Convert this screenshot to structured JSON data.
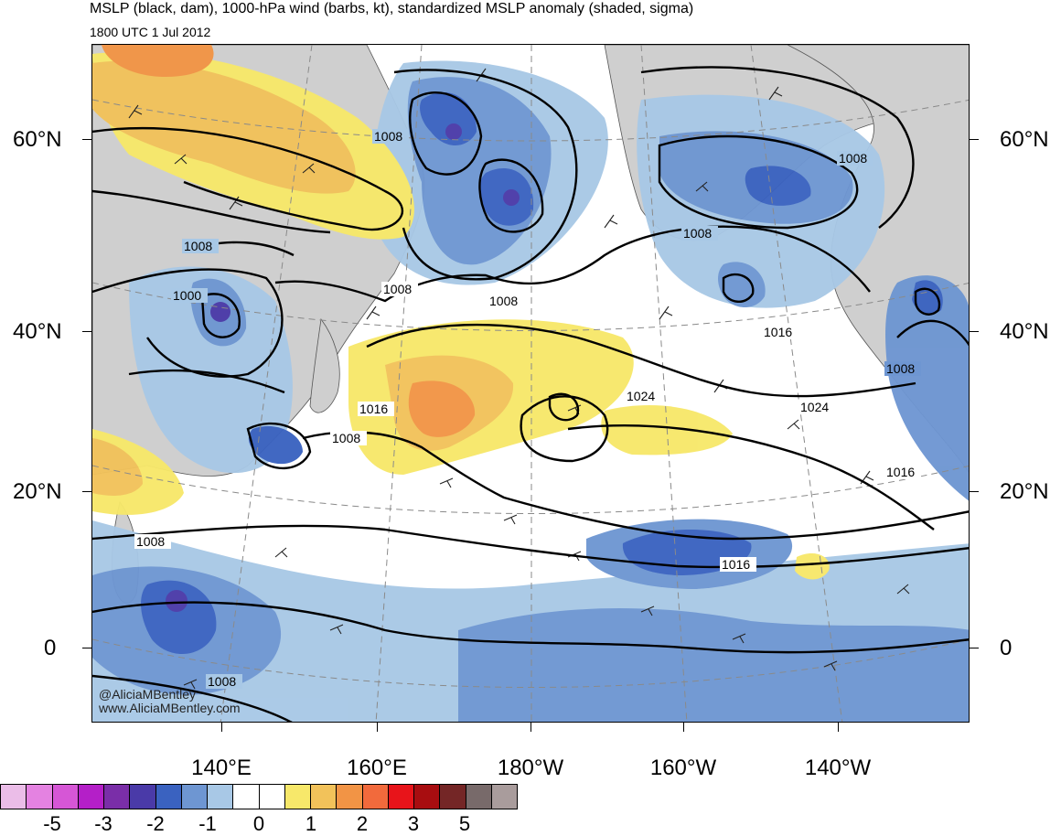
{
  "header": {
    "title": "MSLP (black, dam), 1000-hPa wind (barbs, kt), standardized MSLP anomaly (shaded, sigma)",
    "valid_time": "1800 UTC 1 Jul 2012"
  },
  "map": {
    "region": "North Pacific",
    "projection": "polar stereographic",
    "lat_labels_left": [
      "60°N",
      "40°N",
      "20°N",
      "0"
    ],
    "lat_labels_right": [
      "60°N",
      "40°N",
      "20°N",
      "0"
    ],
    "lon_labels": [
      "140°E",
      "160°E",
      "180°W",
      "160°W",
      "140°W"
    ],
    "isobar_labels": [
      "1008",
      "1008",
      "1008",
      "1000",
      "1008",
      "1008",
      "1016",
      "1008",
      "1024",
      "1024",
      "1016",
      "1016",
      "1016",
      "1008",
      "1008",
      "1008",
      "1008"
    ],
    "colors": {
      "land": "#cfcfcf",
      "ocean": "#ffffff",
      "contour": "#000000",
      "barbs": "#222222"
    }
  },
  "watermark": {
    "line1": "@AliciaMBentley",
    "line2": "www.AliciaMBentley.com"
  },
  "colorbar": {
    "colors": [
      "#ebbde8",
      "#e482e1",
      "#d656d6",
      "#b41fc8",
      "#7a2ea8",
      "#4a3aa8",
      "#3a62c0",
      "#6e96d2",
      "#a8c8e6",
      "#ffffff",
      "#ffffff",
      "#f7e86a",
      "#f2c25a",
      "#f29445",
      "#f26a3c",
      "#e8141a",
      "#a80d10",
      "#742626",
      "#786a6a",
      "#a99c9c"
    ],
    "labels": [
      "-5",
      "-3",
      "-2",
      "-1",
      "0",
      "1",
      "2",
      "3",
      "5"
    ]
  }
}
